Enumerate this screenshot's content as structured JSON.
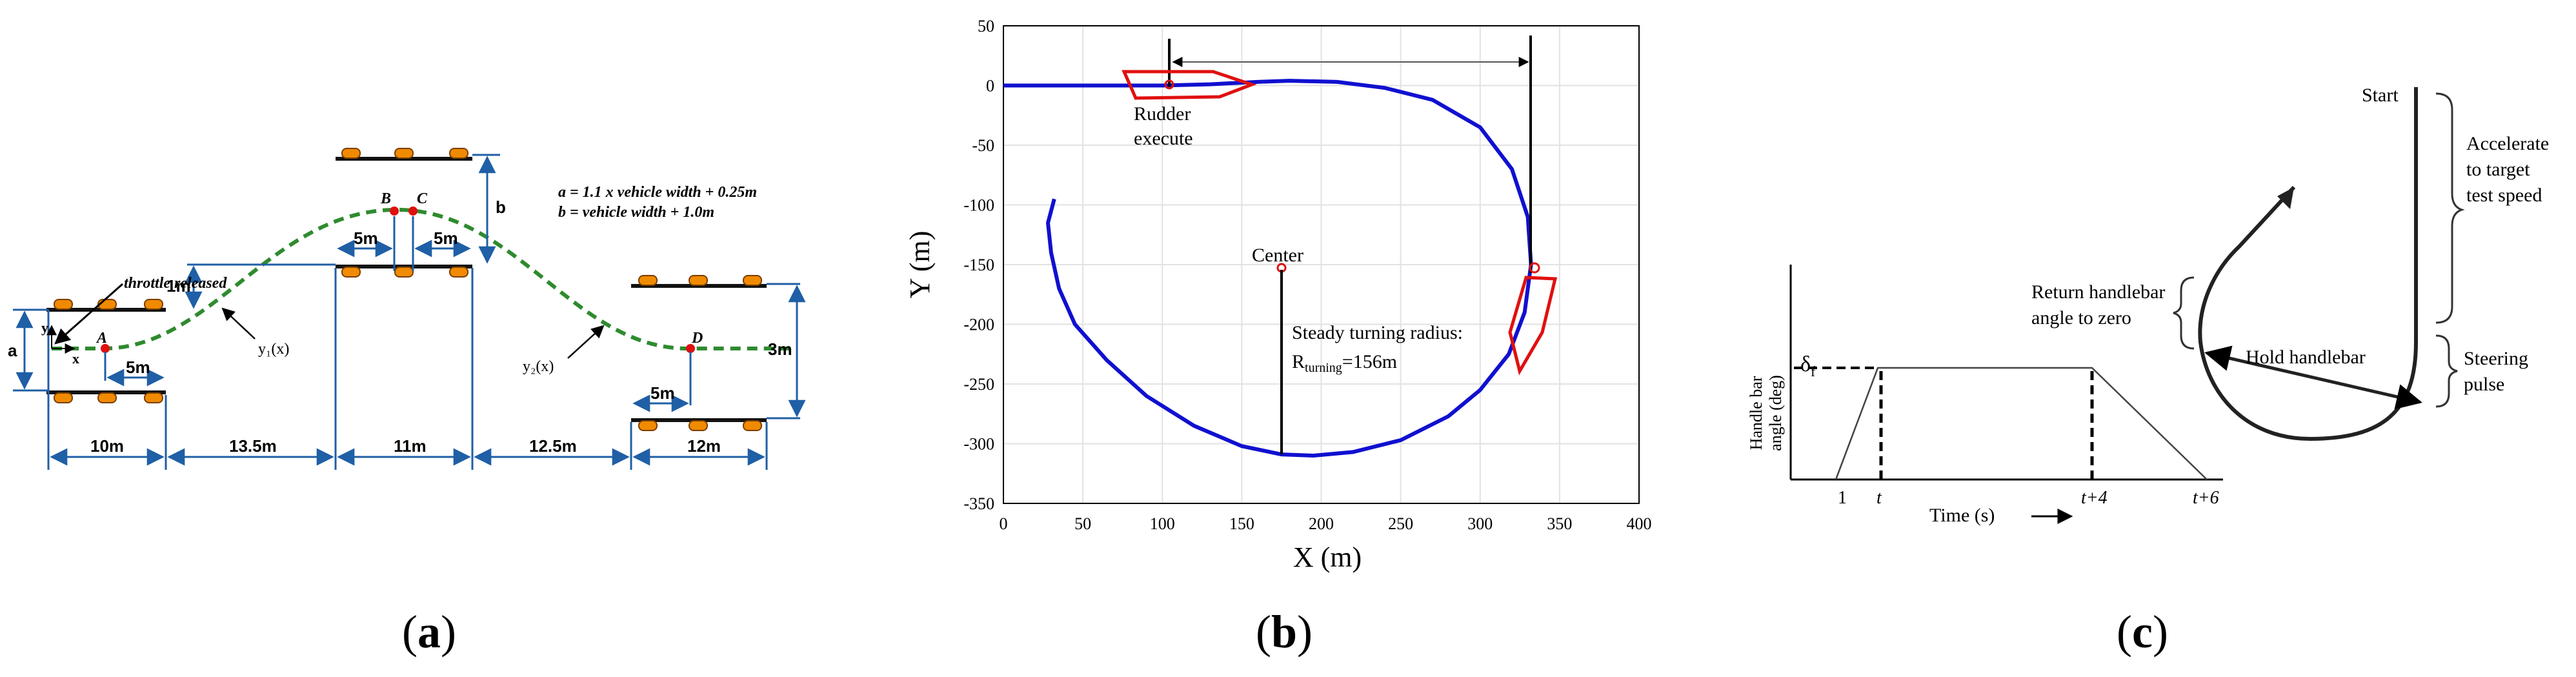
{
  "panels": {
    "a": {
      "caption_open": "(",
      "caption_letter": "a",
      "caption_close": ")",
      "formula_a": "a = 1.1 x vehicle width + 0.25m",
      "formula_b": "b = vehicle width + 1.0m",
      "throttle_label": "throttle released",
      "points": {
        "A": "A",
        "B": "B",
        "C": "C",
        "D": "D"
      },
      "y1_label": "y₁(x)",
      "y2_label": "y₂(x)",
      "axis_y": "y",
      "axis_x": "x",
      "side_a": "a",
      "side_b": "b",
      "offset_1m": "1m",
      "width_3m": "3m",
      "inner_5m": [
        "5m",
        "5m",
        "5m",
        "5m"
      ],
      "sections": [
        "10m",
        "13.5m",
        "11m",
        "12.5m",
        "12m"
      ],
      "colors": {
        "path": "#2e8b2e",
        "cone": "#f08a00",
        "dim": "#1f5fa6",
        "point": "#e01010"
      }
    },
    "b": {
      "caption_open": "(",
      "caption_letter": "b",
      "caption_close": ")",
      "rudder_label_1": "Rudder",
      "rudder_label_2": "execute",
      "center_label": "Center",
      "radius_label_1": "Steady turning radius:",
      "radius_label_2_main": "R",
      "radius_label_2_sub": "turning",
      "radius_label_2_value": "=156m"
    },
    "c": {
      "caption_open": "(",
      "caption_letter": "c",
      "caption_close": ")",
      "start": "Start",
      "accelerate": [
        "Accelerate",
        "to target",
        "test speed"
      ],
      "steering": [
        "Steering",
        "pulse"
      ],
      "return_label": [
        "Return handlebar",
        "angle to zero"
      ],
      "hold_label": "Hold handlebar",
      "delta": "δ",
      "delta_sub": "f",
      "ylabel": [
        "Handle bar",
        "angle (deg)"
      ],
      "xlabel": "Time (s)",
      "ticks": [
        "1",
        "t",
        "t+4",
        "t+6"
      ],
      "arrow": "⟶"
    }
  },
  "chart_data": {
    "type": "line",
    "xlabel": "X (m)",
    "ylabel": "Y (m)",
    "xlim": [
      0,
      400
    ],
    "ylim": [
      -350,
      50
    ],
    "xticks": [
      0,
      50,
      100,
      150,
      200,
      250,
      300,
      350,
      400
    ],
    "yticks": [
      50,
      0,
      -50,
      -100,
      -150,
      -200,
      -250,
      -300,
      -350
    ],
    "grid": true,
    "series": [
      {
        "color": "#1010d0",
        "x": [
          0,
          100,
          130,
          160,
          180,
          210,
          240,
          270,
          300,
          320,
          330,
          332,
          328,
          318,
          300,
          280,
          250,
          220,
          195,
          175,
          150,
          120,
          90,
          65,
          45,
          35,
          30,
          28,
          32
        ],
        "y": [
          0,
          0,
          1,
          3,
          4,
          3,
          -2,
          -12,
          -35,
          -70,
          -110,
          -150,
          -190,
          -225,
          -255,
          -277,
          -297,
          -307,
          -310,
          -309,
          -302,
          -285,
          -260,
          -230,
          -200,
          -170,
          -140,
          -115,
          -95
        ]
      }
    ],
    "annotations": [
      {
        "text": "Center",
        "x": 175,
        "y": -155
      },
      {
        "text": "Steady turning radius:",
        "x": 180,
        "y": -210
      }
    ]
  }
}
